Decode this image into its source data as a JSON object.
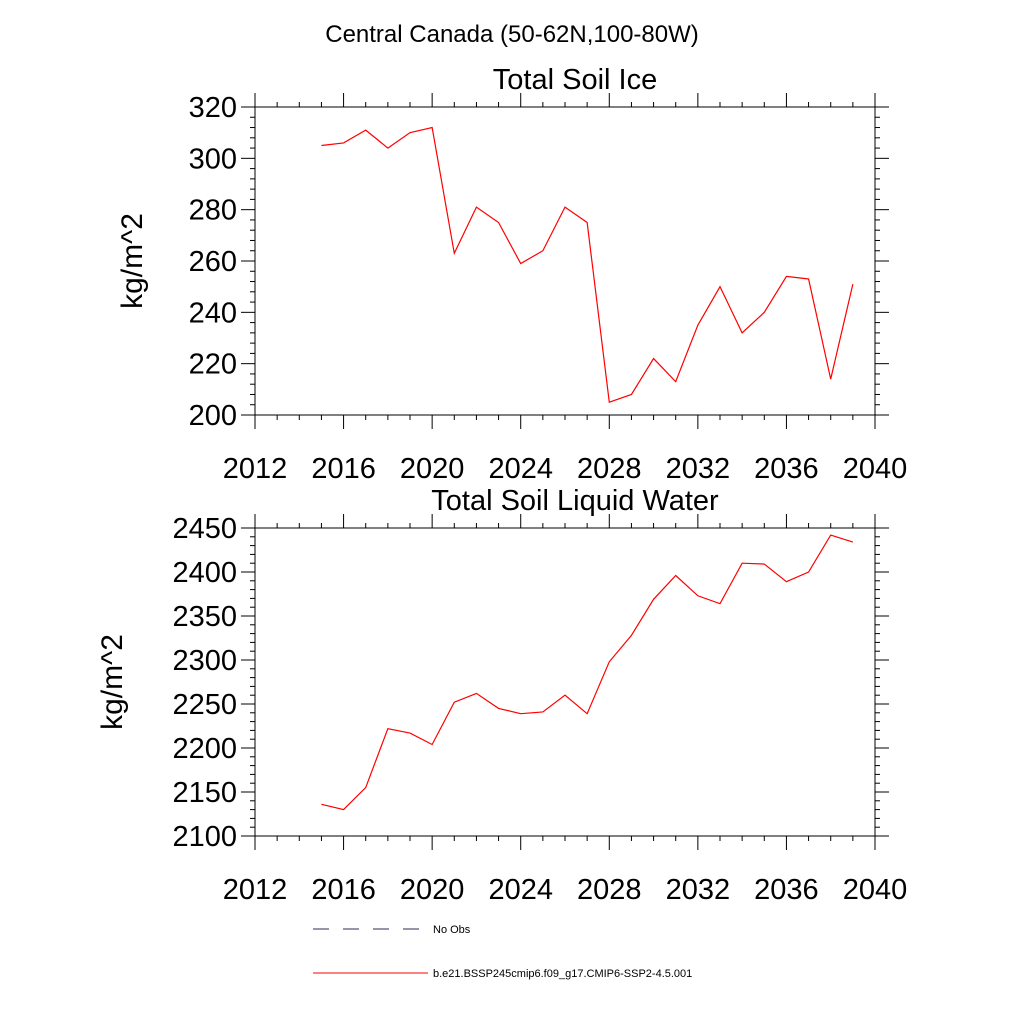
{
  "figure": {
    "title": "Central Canada (50-62N,100-80W)"
  },
  "legend": {
    "entries": [
      {
        "label": "No Obs",
        "color": "#2c2c54",
        "dash": "dashed"
      },
      {
        "label": "b.e21.BSSP245cmip6.f09_g17.CMIP6-SSP2-4.5.001",
        "color": "#ff0000",
        "dash": "solid"
      }
    ]
  },
  "chart_data": [
    {
      "type": "line",
      "title": "Total Soil Ice",
      "xlabel": "",
      "ylabel": "kg/m^2",
      "xlim": [
        2012,
        2040
      ],
      "ylim": [
        200,
        320
      ],
      "xticks": [
        2012,
        2016,
        2020,
        2024,
        2028,
        2032,
        2036,
        2040
      ],
      "yticks": [
        200,
        220,
        240,
        260,
        280,
        300,
        320
      ],
      "series": [
        {
          "color": "#ff0000",
          "x": [
            2015,
            2016,
            2017,
            2018,
            2019,
            2020,
            2021,
            2022,
            2023,
            2024,
            2025,
            2026,
            2027,
            2028,
            2029,
            2030,
            2031,
            2032,
            2033,
            2034,
            2035,
            2036,
            2037,
            2038,
            2039
          ],
          "y": [
            305,
            306,
            311,
            304,
            310,
            312,
            263,
            281,
            275,
            259,
            264,
            281,
            275,
            205,
            208,
            222,
            213,
            235,
            250,
            232,
            240,
            254,
            253,
            214,
            251
          ]
        }
      ]
    },
    {
      "type": "line",
      "title": "Total Soil Liquid Water",
      "xlabel": "",
      "ylabel": "kg/m^2",
      "xlim": [
        2012,
        2040
      ],
      "ylim": [
        2100,
        2450
      ],
      "xticks": [
        2012,
        2016,
        2020,
        2024,
        2028,
        2032,
        2036,
        2040
      ],
      "yticks": [
        2100,
        2150,
        2200,
        2250,
        2300,
        2350,
        2400,
        2450
      ],
      "series": [
        {
          "color": "#ff0000",
          "x": [
            2015,
            2016,
            2017,
            2018,
            2019,
            2020,
            2021,
            2022,
            2023,
            2024,
            2025,
            2026,
            2027,
            2028,
            2029,
            2030,
            2031,
            2032,
            2033,
            2034,
            2035,
            2036,
            2037,
            2038,
            2039
          ],
          "y": [
            2136,
            2130,
            2155,
            2222,
            2217,
            2204,
            2252,
            2262,
            2245,
            2239,
            2241,
            2260,
            2239,
            2298,
            2328,
            2369,
            2396,
            2373,
            2364,
            2410,
            2409,
            2389,
            2400,
            2442,
            2434
          ]
        }
      ]
    }
  ]
}
